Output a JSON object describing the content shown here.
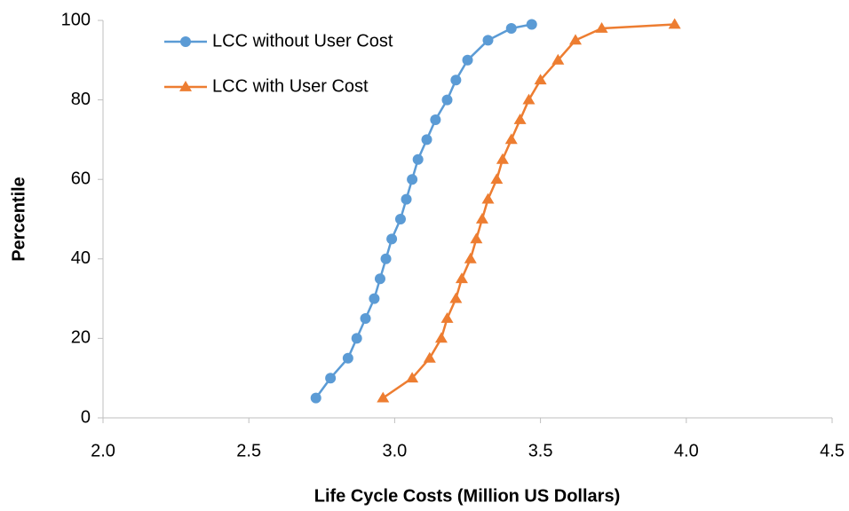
{
  "chart_data": {
    "type": "line",
    "xlabel": "Life Cycle Costs (Million US Dollars)",
    "ylabel": "Percentile",
    "xlim": [
      2.0,
      4.5
    ],
    "xticks": [
      {
        "value": 2,
        "label": "2.0"
      },
      2.5,
      {
        "value": 3,
        "label": "3.0"
      },
      3.5,
      {
        "value": 4,
        "label": "4.0"
      },
      4.5
    ],
    "ylim": [
      0,
      100
    ],
    "yticks": [
      0,
      20,
      40,
      60,
      80,
      100
    ],
    "grid": false,
    "legend": "upper left",
    "series": [
      {
        "name": "LCC without User Cost",
        "color": "#5b9bd5",
        "marker": "circle",
        "x": [
          2.73,
          2.78,
          2.84,
          2.87,
          2.9,
          2.93,
          2.95,
          2.97,
          2.99,
          3.02,
          3.04,
          3.06,
          3.08,
          3.11,
          3.14,
          3.18,
          3.21,
          3.25,
          3.32,
          3.4,
          3.47
        ],
        "values": [
          5,
          10,
          15,
          20,
          25,
          30,
          35,
          40,
          45,
          50,
          55,
          60,
          65,
          70,
          75,
          80,
          85,
          90,
          95,
          98,
          99
        ]
      },
      {
        "name": "LCC with User Cost",
        "color": "#ed7d31",
        "marker": "triangle",
        "x": [
          2.96,
          3.06,
          3.12,
          3.16,
          3.18,
          3.21,
          3.23,
          3.26,
          3.28,
          3.3,
          3.32,
          3.35,
          3.37,
          3.4,
          3.43,
          3.46,
          3.5,
          3.56,
          3.62,
          3.71,
          3.96
        ],
        "values": [
          5,
          10,
          15,
          20,
          25,
          30,
          35,
          40,
          45,
          50,
          55,
          60,
          65,
          70,
          75,
          80,
          85,
          90,
          95,
          98,
          99
        ]
      }
    ]
  }
}
